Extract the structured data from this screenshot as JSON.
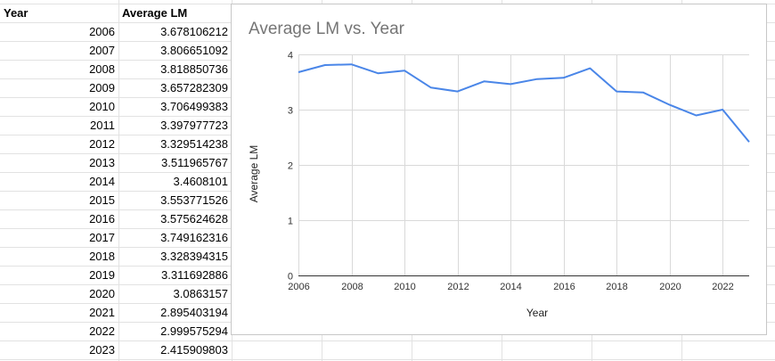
{
  "sheet": {
    "headers": [
      "Year",
      "Average LM"
    ],
    "rows": [
      [
        "2006",
        "3.678106212"
      ],
      [
        "2007",
        "3.806651092"
      ],
      [
        "2008",
        "3.818850736"
      ],
      [
        "2009",
        "3.657282309"
      ],
      [
        "2010",
        "3.706499383"
      ],
      [
        "2011",
        "3.397977723"
      ],
      [
        "2012",
        "3.329514238"
      ],
      [
        "2013",
        "3.511965767"
      ],
      [
        "2014",
        "3.4608101"
      ],
      [
        "2015",
        "3.553771526"
      ],
      [
        "2016",
        "3.575624628"
      ],
      [
        "2017",
        "3.749162316"
      ],
      [
        "2018",
        "3.328394315"
      ],
      [
        "2019",
        "3.311692886"
      ],
      [
        "2020",
        "3.0863157"
      ],
      [
        "2021",
        "2.895403194"
      ],
      [
        "2022",
        "2.999575294"
      ],
      [
        "2023",
        "2.415909803"
      ]
    ]
  },
  "chart_data": {
    "type": "line",
    "title": "Average LM vs. Year",
    "xlabel": "Year",
    "ylabel": "Average LM",
    "x": [
      2006,
      2007,
      2008,
      2009,
      2010,
      2011,
      2012,
      2013,
      2014,
      2015,
      2016,
      2017,
      2018,
      2019,
      2020,
      2021,
      2022,
      2023
    ],
    "series": [
      {
        "values": [
          3.678106212,
          3.806651092,
          3.818850736,
          3.657282309,
          3.706499383,
          3.397977723,
          3.329514238,
          3.511965767,
          3.4608101,
          3.553771526,
          3.575624628,
          3.749162316,
          3.328394315,
          3.311692886,
          3.0863157,
          2.895403194,
          2.999575294,
          2.415909803
        ],
        "color": "#4a86e8"
      }
    ],
    "xlim": [
      2006,
      2023
    ],
    "ylim": [
      0,
      4
    ],
    "x_ticks": [
      "2006",
      "2008",
      "2010",
      "2012",
      "2014",
      "2016",
      "2018",
      "2020",
      "2022"
    ],
    "y_ticks": [
      "0",
      "1",
      "2",
      "3",
      "4"
    ],
    "grid": true,
    "legend": "none"
  }
}
